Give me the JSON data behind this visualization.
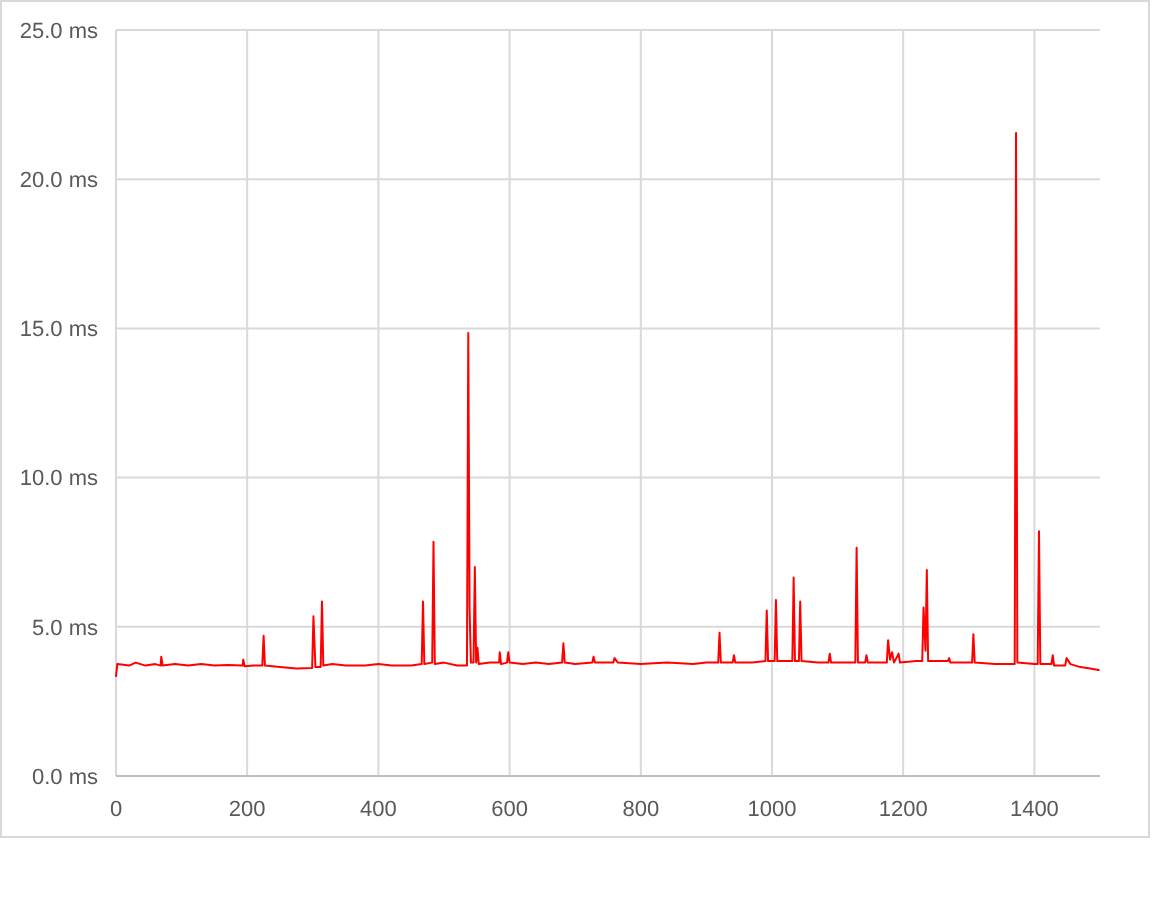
{
  "chart_data": {
    "type": "line",
    "x": [
      0,
      2,
      20,
      30,
      45,
      60,
      68,
      69,
      71,
      90,
      110,
      130,
      150,
      170,
      193,
      194,
      196,
      210,
      223,
      225,
      227,
      250,
      275,
      299,
      301,
      304,
      312,
      314,
      316,
      330,
      350,
      380,
      400,
      420,
      450,
      466,
      468,
      470,
      482,
      484,
      486,
      500,
      520,
      535,
      537,
      539,
      541,
      545,
      547,
      549,
      551,
      553,
      570,
      584,
      585,
      587,
      596,
      598,
      600,
      620,
      640,
      660,
      680,
      682,
      684,
      700,
      726,
      728,
      730,
      758,
      760,
      765,
      800,
      840,
      880,
      900,
      918,
      920,
      922,
      940,
      942,
      944,
      970,
      990,
      992,
      994,
      1004,
      1006,
      1008,
      1031,
      1033,
      1035,
      1041,
      1043,
      1045,
      1070,
      1086,
      1088,
      1090,
      1110,
      1127,
      1129,
      1131,
      1142,
      1144,
      1146,
      1170,
      1175,
      1177,
      1180,
      1183,
      1186,
      1193,
      1195,
      1220,
      1229,
      1231,
      1234,
      1236,
      1238,
      1250,
      1268,
      1270,
      1272,
      1300,
      1305,
      1307,
      1309,
      1340,
      1370,
      1372,
      1374,
      1400,
      1405,
      1407,
      1409,
      1426,
      1428,
      1430,
      1447,
      1449,
      1455,
      1470,
      1485,
      1498
    ],
    "series": [
      {
        "color": "#ff0000",
        "line_style": "solid",
        "values": [
          3.35,
          3.75,
          3.7,
          3.8,
          3.7,
          3.75,
          3.7,
          4.0,
          3.7,
          3.75,
          3.7,
          3.75,
          3.7,
          3.72,
          3.7,
          3.9,
          3.68,
          3.7,
          3.7,
          4.7,
          3.7,
          3.65,
          3.6,
          3.62,
          5.35,
          3.65,
          3.65,
          5.85,
          3.7,
          3.75,
          3.7,
          3.7,
          3.75,
          3.7,
          3.7,
          3.75,
          5.85,
          3.75,
          3.8,
          7.85,
          3.75,
          3.8,
          3.7,
          3.7,
          14.85,
          5.6,
          3.8,
          3.8,
          7.0,
          3.8,
          4.3,
          3.75,
          3.8,
          3.8,
          4.15,
          3.75,
          3.8,
          4.15,
          3.8,
          3.75,
          3.8,
          3.75,
          3.8,
          4.45,
          3.8,
          3.75,
          3.8,
          4.0,
          3.8,
          3.8,
          3.95,
          3.8,
          3.75,
          3.8,
          3.75,
          3.8,
          3.8,
          4.8,
          3.8,
          3.8,
          4.05,
          3.8,
          3.8,
          3.85,
          5.55,
          3.85,
          3.85,
          5.9,
          3.85,
          3.85,
          6.65,
          3.85,
          3.85,
          5.85,
          3.85,
          3.8,
          3.8,
          4.1,
          3.8,
          3.8,
          3.8,
          7.65,
          3.8,
          3.8,
          4.05,
          3.8,
          3.8,
          3.8,
          4.55,
          3.9,
          4.15,
          3.8,
          4.1,
          3.8,
          3.85,
          3.85,
          5.65,
          4.2,
          6.9,
          3.85,
          3.85,
          3.85,
          3.95,
          3.8,
          3.8,
          3.8,
          4.75,
          3.8,
          3.75,
          3.75,
          21.55,
          3.8,
          3.75,
          3.75,
          8.2,
          3.75,
          3.75,
          4.05,
          3.7,
          3.7,
          3.95,
          3.75,
          3.65,
          3.6,
          3.55
        ]
      }
    ],
    "xlim": [
      0,
      1500
    ],
    "ylim": [
      0,
      25
    ],
    "xticks": [
      0,
      200,
      400,
      600,
      800,
      1000,
      1200,
      1400
    ],
    "yticks": [
      {
        "value": 0,
        "label": "0.0 ms"
      },
      {
        "value": 5,
        "label": "5.0 ms"
      },
      {
        "value": 10,
        "label": "10.0 ms"
      },
      {
        "value": 15,
        "label": "15.0 ms"
      },
      {
        "value": 20,
        "label": "20.0 ms"
      },
      {
        "value": 25,
        "label": "25.0 ms"
      }
    ],
    "grid": true
  }
}
